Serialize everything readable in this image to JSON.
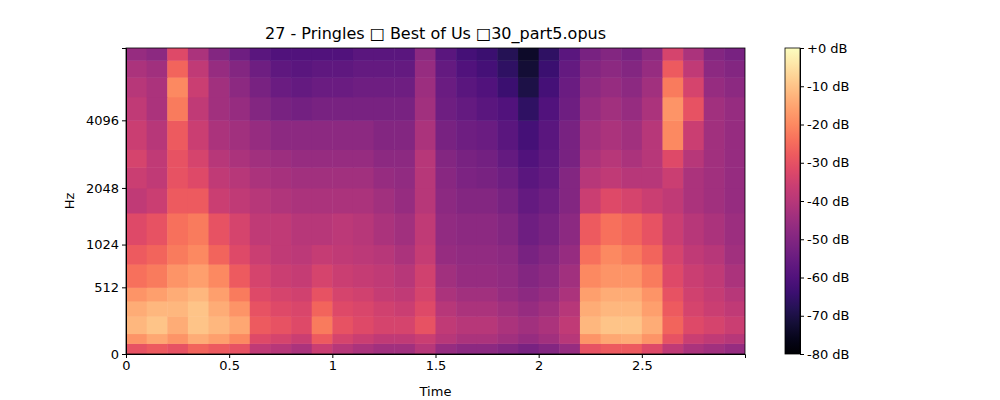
{
  "chart_data": {
    "type": "heatmap",
    "title": "27 - Pringles □ Best of Us □30_part5.opus",
    "x_label": "Time",
    "y_label": "Hz",
    "xlim": [
      0,
      3
    ],
    "ylim": [
      0,
      8000
    ],
    "xticks": [
      0,
      0.5,
      1,
      1.5,
      2,
      2.5
    ],
    "yticks": [
      0,
      512,
      1024,
      2048,
      4096
    ],
    "x_bins": [
      0,
      0.1,
      0.2,
      0.3,
      0.4,
      0.5,
      0.6,
      0.7,
      0.8,
      0.9,
      1,
      1.1,
      1.2,
      1.3,
      1.4,
      1.5,
      1.6,
      1.7,
      1.8,
      1.9,
      2,
      2.1,
      2.2,
      2.3,
      2.4,
      2.5,
      2.6,
      2.7,
      2.8,
      2.9,
      3
    ],
    "y_bins": [
      0,
      64,
      128,
      256,
      384,
      512,
      768,
      1024,
      1536,
      2048,
      2560,
      3072,
      4096,
      5120,
      6144,
      7168,
      8000
    ],
    "cells": [
      [
        -30,
        -28,
        -30,
        -26,
        -28,
        -30,
        -38,
        -40,
        -42,
        -36,
        -40,
        -42,
        -44,
        -44,
        -40,
        -46,
        -48,
        -48,
        -50,
        -52,
        -50,
        -46,
        -30,
        -28,
        -28,
        -32,
        -38,
        -42,
        -44,
        -46
      ],
      [
        -18,
        -15,
        -18,
        -14,
        -16,
        -20,
        -32,
        -34,
        -36,
        -28,
        -34,
        -36,
        -38,
        -38,
        -36,
        -40,
        -42,
        -42,
        -44,
        -46,
        -44,
        -40,
        -18,
        -15,
        -14,
        -18,
        -30,
        -36,
        -38,
        -40
      ],
      [
        -12,
        -10,
        -14,
        -10,
        -12,
        -15,
        -28,
        -30,
        -32,
        -22,
        -30,
        -32,
        -34,
        -34,
        -30,
        -38,
        -40,
        -40,
        -42,
        -44,
        -42,
        -38,
        -12,
        -10,
        -10,
        -14,
        -26,
        -32,
        -34,
        -36
      ],
      [
        -14,
        -12,
        -12,
        -10,
        -14,
        -18,
        -30,
        -32,
        -33,
        -26,
        -32,
        -33,
        -35,
        -36,
        -32,
        -40,
        -42,
        -42,
        -44,
        -46,
        -44,
        -40,
        -14,
        -12,
        -12,
        -16,
        -28,
        -34,
        -36,
        -38
      ],
      [
        -18,
        -16,
        -14,
        -12,
        -16,
        -22,
        -32,
        -34,
        -35,
        -30,
        -34,
        -35,
        -37,
        -38,
        -34,
        -42,
        -44,
        -44,
        -46,
        -48,
        -46,
        -42,
        -16,
        -14,
        -14,
        -18,
        -30,
        -35,
        -37,
        -40
      ],
      [
        -24,
        -22,
        -18,
        -16,
        -20,
        -28,
        -34,
        -36,
        -37,
        -34,
        -36,
        -37,
        -38,
        -40,
        -35,
        -44,
        -46,
        -46,
        -47,
        -50,
        -48,
        -44,
        -20,
        -18,
        -18,
        -22,
        -32,
        -36,
        -38,
        -42
      ],
      [
        -28,
        -26,
        -22,
        -20,
        -26,
        -32,
        -36,
        -38,
        -39,
        -37,
        -38,
        -39,
        -40,
        -42,
        -37,
        -46,
        -47,
        -47,
        -48,
        -52,
        -50,
        -46,
        -24,
        -20,
        -22,
        -26,
        -34,
        -38,
        -40,
        -44
      ],
      [
        -32,
        -30,
        -24,
        -22,
        -30,
        -34,
        -38,
        -38,
        -40,
        -40,
        -39,
        -40,
        -42,
        -44,
        -38,
        -47,
        -48,
        -48,
        -50,
        -54,
        -52,
        -48,
        -28,
        -24,
        -26,
        -30,
        -36,
        -40,
        -42,
        -45
      ],
      [
        -38,
        -36,
        -28,
        -28,
        -36,
        -38,
        -40,
        -41,
        -42,
        -42,
        -42,
        -42,
        -44,
        -46,
        -40,
        -48,
        -50,
        -50,
        -52,
        -56,
        -54,
        -50,
        -36,
        -32,
        -34,
        -36,
        -38,
        -42,
        -44,
        -46
      ],
      [
        -36,
        -38,
        -30,
        -32,
        -38,
        -40,
        -42,
        -43,
        -44,
        -44,
        -44,
        -44,
        -46,
        -47,
        -40,
        -49,
        -51,
        -52,
        -54,
        -58,
        -56,
        -50,
        -40,
        -38,
        -40,
        -40,
        -36,
        -42,
        -44,
        -46
      ],
      [
        -34,
        -38,
        -30,
        -34,
        -40,
        -42,
        -44,
        -45,
        -46,
        -46,
        -46,
        -46,
        -48,
        -48,
        -40,
        -50,
        -52,
        -53,
        -56,
        -60,
        -57,
        -52,
        -42,
        -40,
        -42,
        -40,
        -32,
        -40,
        -44,
        -46
      ],
      [
        -36,
        -40,
        -28,
        -36,
        -42,
        -44,
        -46,
        -48,
        -48,
        -48,
        -48,
        -48,
        -50,
        -50,
        -42,
        -52,
        -54,
        -55,
        -58,
        -62,
        -58,
        -52,
        -44,
        -42,
        -44,
        -40,
        -20,
        -36,
        -44,
        -46
      ],
      [
        -38,
        -42,
        -22,
        -38,
        -44,
        -46,
        -50,
        -52,
        -53,
        -52,
        -52,
        -52,
        -52,
        -52,
        -44,
        -54,
        -56,
        -58,
        -60,
        -66,
        -60,
        -54,
        -46,
        -44,
        -46,
        -42,
        -18,
        -30,
        -44,
        -46
      ],
      [
        -40,
        -42,
        -20,
        -36,
        -44,
        -48,
        -52,
        -55,
        -56,
        -55,
        -55,
        -54,
        -54,
        -54,
        -45,
        -55,
        -58,
        -60,
        -64,
        -70,
        -62,
        -55,
        -48,
        -46,
        -48,
        -44,
        -22,
        -34,
        -46,
        -48
      ],
      [
        -42,
        -44,
        -26,
        -38,
        -46,
        -50,
        -54,
        -57,
        -58,
        -57,
        -57,
        -56,
        -56,
        -56,
        -46,
        -56,
        -60,
        -62,
        -66,
        -72,
        -64,
        -56,
        -50,
        -48,
        -50,
        -46,
        -28,
        -38,
        -48,
        -50
      ],
      [
        -46,
        -48,
        -32,
        -42,
        -50,
        -54,
        -58,
        -60,
        -60,
        -60,
        -60,
        -58,
        -58,
        -58,
        -48,
        -58,
        -62,
        -64,
        -68,
        -74,
        -66,
        -58,
        -52,
        -50,
        -52,
        -48,
        -34,
        -42,
        -50,
        -52
      ]
    ],
    "colorbar": {
      "range": [
        -80,
        0
      ],
      "ticks": [
        {
          "value": 0,
          "label": "+0 dB"
        },
        {
          "value": -10,
          "label": "-10 dB"
        },
        {
          "value": -20,
          "label": "-20 dB"
        },
        {
          "value": -30,
          "label": "-30 dB"
        },
        {
          "value": -40,
          "label": "-40 dB"
        },
        {
          "value": -50,
          "label": "-50 dB"
        },
        {
          "value": -60,
          "label": "-60 dB"
        },
        {
          "value": -70,
          "label": "-70 dB"
        },
        {
          "value": -80,
          "label": "-80 dB"
        }
      ]
    }
  }
}
